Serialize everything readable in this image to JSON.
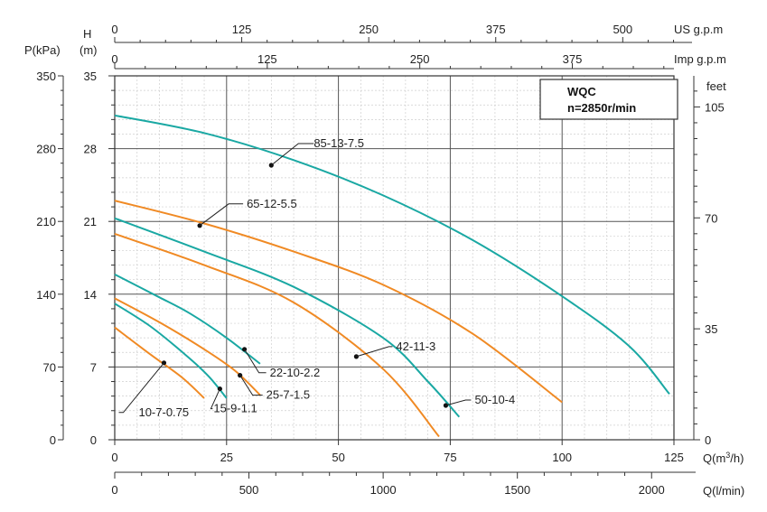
{
  "chart_data": {
    "type": "line",
    "legend_box": {
      "title": "WQC",
      "subtitle": "n=2850r/min"
    },
    "axes": {
      "q_m3h": {
        "label": "Q(m³/h)",
        "range": [
          0,
          125
        ],
        "ticks": [
          0,
          25,
          50,
          75,
          100,
          125
        ]
      },
      "q_lmin": {
        "label": "Q(l/min)",
        "range": [
          0,
          2083.3
        ],
        "ticks": [
          0,
          500,
          1000,
          1500,
          2000
        ]
      },
      "us_gpm": {
        "label": "US g.p.m",
        "range": [
          0,
          550.4
        ],
        "ticks": [
          0,
          125,
          250,
          375,
          500
        ]
      },
      "imp_gpm": {
        "label": "Imp g.p.m",
        "range": [
          0,
          458.3
        ],
        "ticks": [
          0,
          125,
          250,
          375
        ]
      },
      "head_m": {
        "label": "H",
        "unit": "(m)",
        "range": [
          0,
          35
        ],
        "ticks": [
          0,
          7,
          14,
          21,
          28,
          35
        ]
      },
      "pressure_kpa": {
        "label": "P(kPa)",
        "range": [
          0,
          350
        ],
        "ticks": [
          0,
          70,
          140,
          210,
          280,
          350
        ]
      },
      "head_ft": {
        "label": "feet",
        "range": [
          0,
          114.8
        ],
        "ticks": [
          0,
          35,
          70,
          105
        ]
      }
    },
    "series": [
      {
        "name": "85-13-7.5",
        "color": "#1aa8a3",
        "x": [
          0,
          20,
          40,
          60,
          80,
          100,
          115,
          124
        ],
        "y": [
          31.2,
          29.5,
          26.9,
          23.5,
          19.2,
          13.8,
          9.0,
          4.4
        ],
        "marker": [
          35,
          26.4
        ],
        "label_pos": "above"
      },
      {
        "name": "65-12-5.5",
        "color": "#f08a24",
        "x": [
          0,
          20,
          40,
          60,
          80,
          100
        ],
        "y": [
          23.0,
          20.8,
          18.1,
          14.9,
          10.2,
          3.6
        ],
        "marker": [
          19,
          20.6
        ],
        "label_pos": "above"
      },
      {
        "name": "50-10-4",
        "color": "#1aa8a3",
        "x": [
          0,
          20,
          40,
          60,
          70,
          77
        ],
        "y": [
          21.3,
          18.1,
          14.7,
          9.8,
          5.6,
          2.2
        ],
        "marker": [
          74,
          3.3
        ],
        "label_pos": "right"
      },
      {
        "name": "42-11-3",
        "color": "#f08a24",
        "x": [
          0,
          20,
          40,
          60,
          72.5
        ],
        "y": [
          19.8,
          16.8,
          13.2,
          6.8,
          0.3
        ],
        "marker": [
          54,
          8.0
        ],
        "label_pos": "right"
      },
      {
        "name": "22-10-2.2",
        "color": "#1aa8a3",
        "x": [
          0,
          10,
          17,
          25,
          32.5
        ],
        "y": [
          15.9,
          13.7,
          12.1,
          9.8,
          7.3
        ],
        "marker": [
          29,
          8.7
        ],
        "label_pos": "below-right"
      },
      {
        "name": "25-7-1.5",
        "color": "#f08a24",
        "x": [
          0,
          10,
          20,
          27,
          32.5
        ],
        "y": [
          13.6,
          11.3,
          8.7,
          6.6,
          4.3
        ],
        "marker": [
          28,
          6.2
        ],
        "label_pos": "below-right"
      },
      {
        "name": "15-9-1.1",
        "color": "#1aa8a3",
        "x": [
          0,
          8,
          16,
          21,
          25
        ],
        "y": [
          13.1,
          10.9,
          8.1,
          6.1,
          4.0
        ],
        "marker": [
          23.5,
          4.9
        ],
        "label_pos": "below"
      },
      {
        "name": "10-7-0.75",
        "color": "#f08a24",
        "x": [
          0,
          8,
          15,
          20
        ],
        "y": [
          10.8,
          8.2,
          6.0,
          4.0
        ],
        "marker": [
          11,
          7.4
        ],
        "label_pos": "below-left"
      }
    ]
  }
}
